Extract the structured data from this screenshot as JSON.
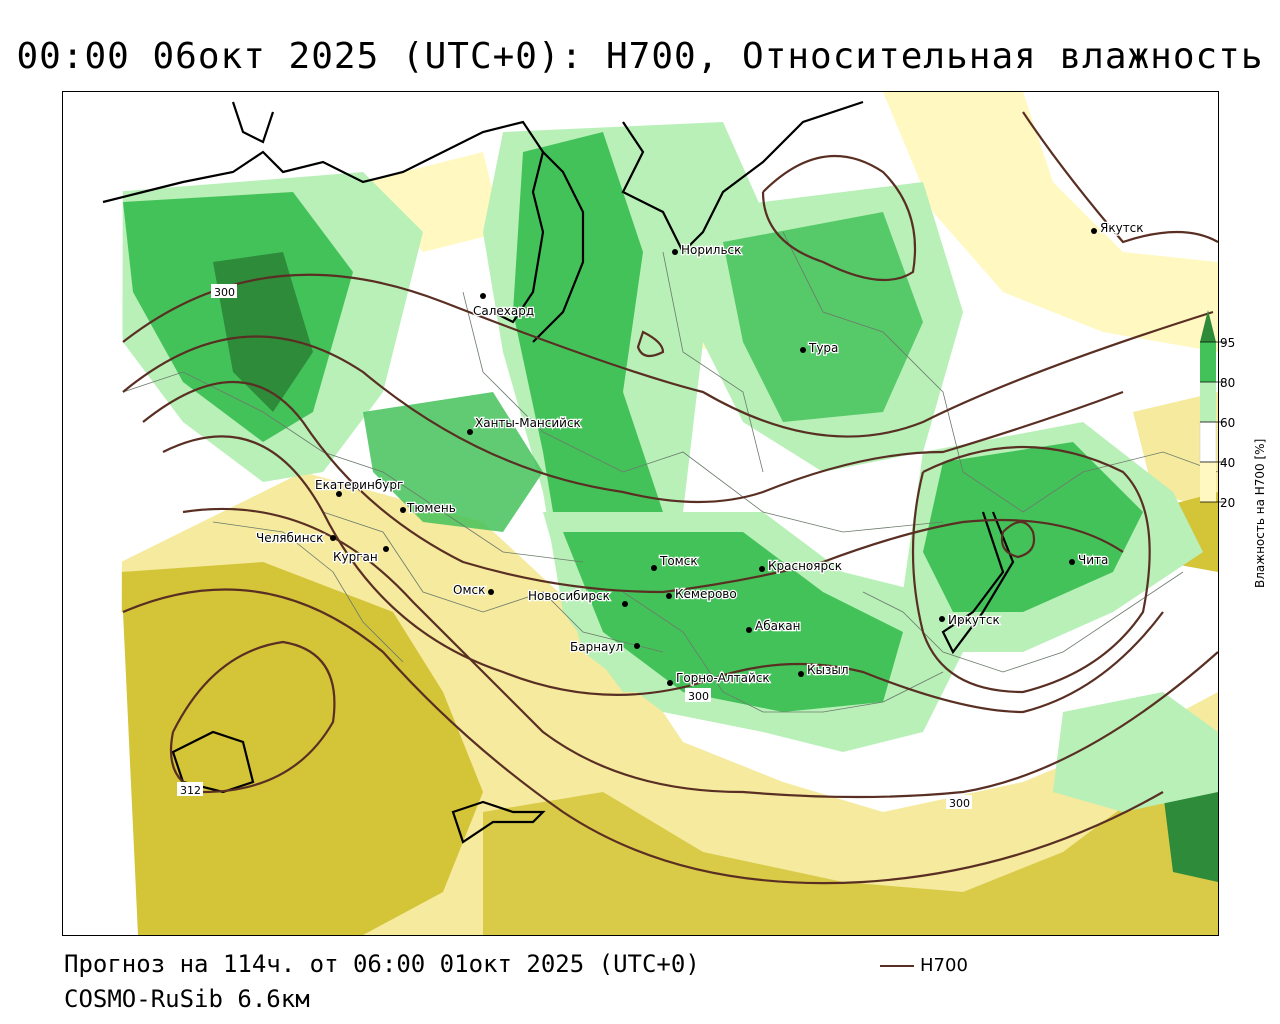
{
  "title": "00:00 06окт 2025 (UTC+0): H700, Относительная влажность",
  "footer": {
    "forecast": "Прогноз на 114ч. от 06:00 01окт 2025 (UTC+0)",
    "model": "COSMO-RuSib 6.6км",
    "contour_legend": "H700"
  },
  "legend": {
    "title": "Влажность на H700 [%]",
    "ticks": [
      "95",
      "80",
      "60",
      "40",
      "20"
    ],
    "colors": [
      "#2e8b3a",
      "#44c25a",
      "#b8f0b8",
      "#ffffff",
      "#fff8c0",
      "#f5ea9e",
      "#d4c438"
    ]
  },
  "contour_labels": [
    "300",
    "300",
    "300",
    "312"
  ],
  "cities": [
    {
      "id": "yakutsk",
      "name": "Якутск"
    },
    {
      "id": "norilsk",
      "name": "Норильск"
    },
    {
      "id": "salekhard",
      "name": "Салехард"
    },
    {
      "id": "tura",
      "name": "Тура"
    },
    {
      "id": "khanty",
      "name": "Ханты-Мансийск"
    },
    {
      "id": "ekaterinburg",
      "name": "Екатеринбург"
    },
    {
      "id": "tyumen",
      "name": "Тюмень"
    },
    {
      "id": "chelyabinsk",
      "name": "Челябинск"
    },
    {
      "id": "kurgan",
      "name": "Курган"
    },
    {
      "id": "omsk",
      "name": "Омск"
    },
    {
      "id": "novosibirsk",
      "name": "Новосибирск"
    },
    {
      "id": "tomsk",
      "name": "Томск"
    },
    {
      "id": "kemerovo",
      "name": "Кемерово"
    },
    {
      "id": "krasnoyarsk",
      "name": "Красноярск"
    },
    {
      "id": "barnaul",
      "name": "Барнаул"
    },
    {
      "id": "abakan",
      "name": "Абакан"
    },
    {
      "id": "gorno",
      "name": "Горно-Алтайск"
    },
    {
      "id": "kyzyl",
      "name": "Кызыл"
    },
    {
      "id": "irkutsk",
      "name": "Иркутск"
    },
    {
      "id": "chita",
      "name": "Чита"
    }
  ]
}
